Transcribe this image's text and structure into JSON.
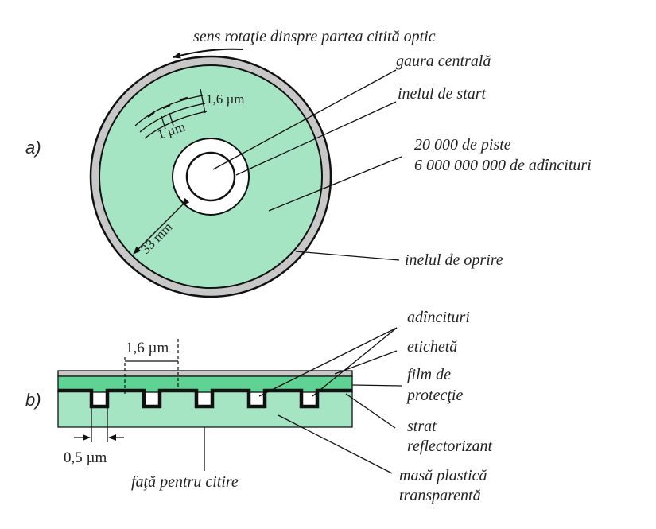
{
  "parts": {
    "a": "a)",
    "b": "b)"
  },
  "disc": {
    "rotation_label": "sens rotaţie dinspre partea citită optic",
    "center_hole_label": "gaura centrală",
    "start_ring_label": "inelul de start",
    "tracks_label": "20 000  de piste",
    "pits_label": "6 000 000 000  de adîncituri",
    "stop_ring_label": "inelul de oprire",
    "track_pitch": "1,6 µm",
    "pit_length": "1 µm",
    "radius": "33 mm"
  },
  "section": {
    "pits_label": "adîncituri",
    "label_layer": "etichetă",
    "protective_film_line1": "film de",
    "protective_film_line2": "protecţie",
    "reflective_line1": "strat",
    "reflective_line2": "reflectorizant",
    "plastic_line1": "masă plastică",
    "plastic_line2": "transparentă",
    "read_side_label": "faţă pentru citire",
    "pitch": "1,6 µm",
    "pit_width": "0,5 µm"
  },
  "colors": {
    "disc_fill": "#a6e5c4",
    "rim_fill": "#c8c8c8",
    "film_fill": "#5fd394",
    "substrate_fill": "#a6e5c4",
    "label_fill": "#c8c8c8"
  }
}
